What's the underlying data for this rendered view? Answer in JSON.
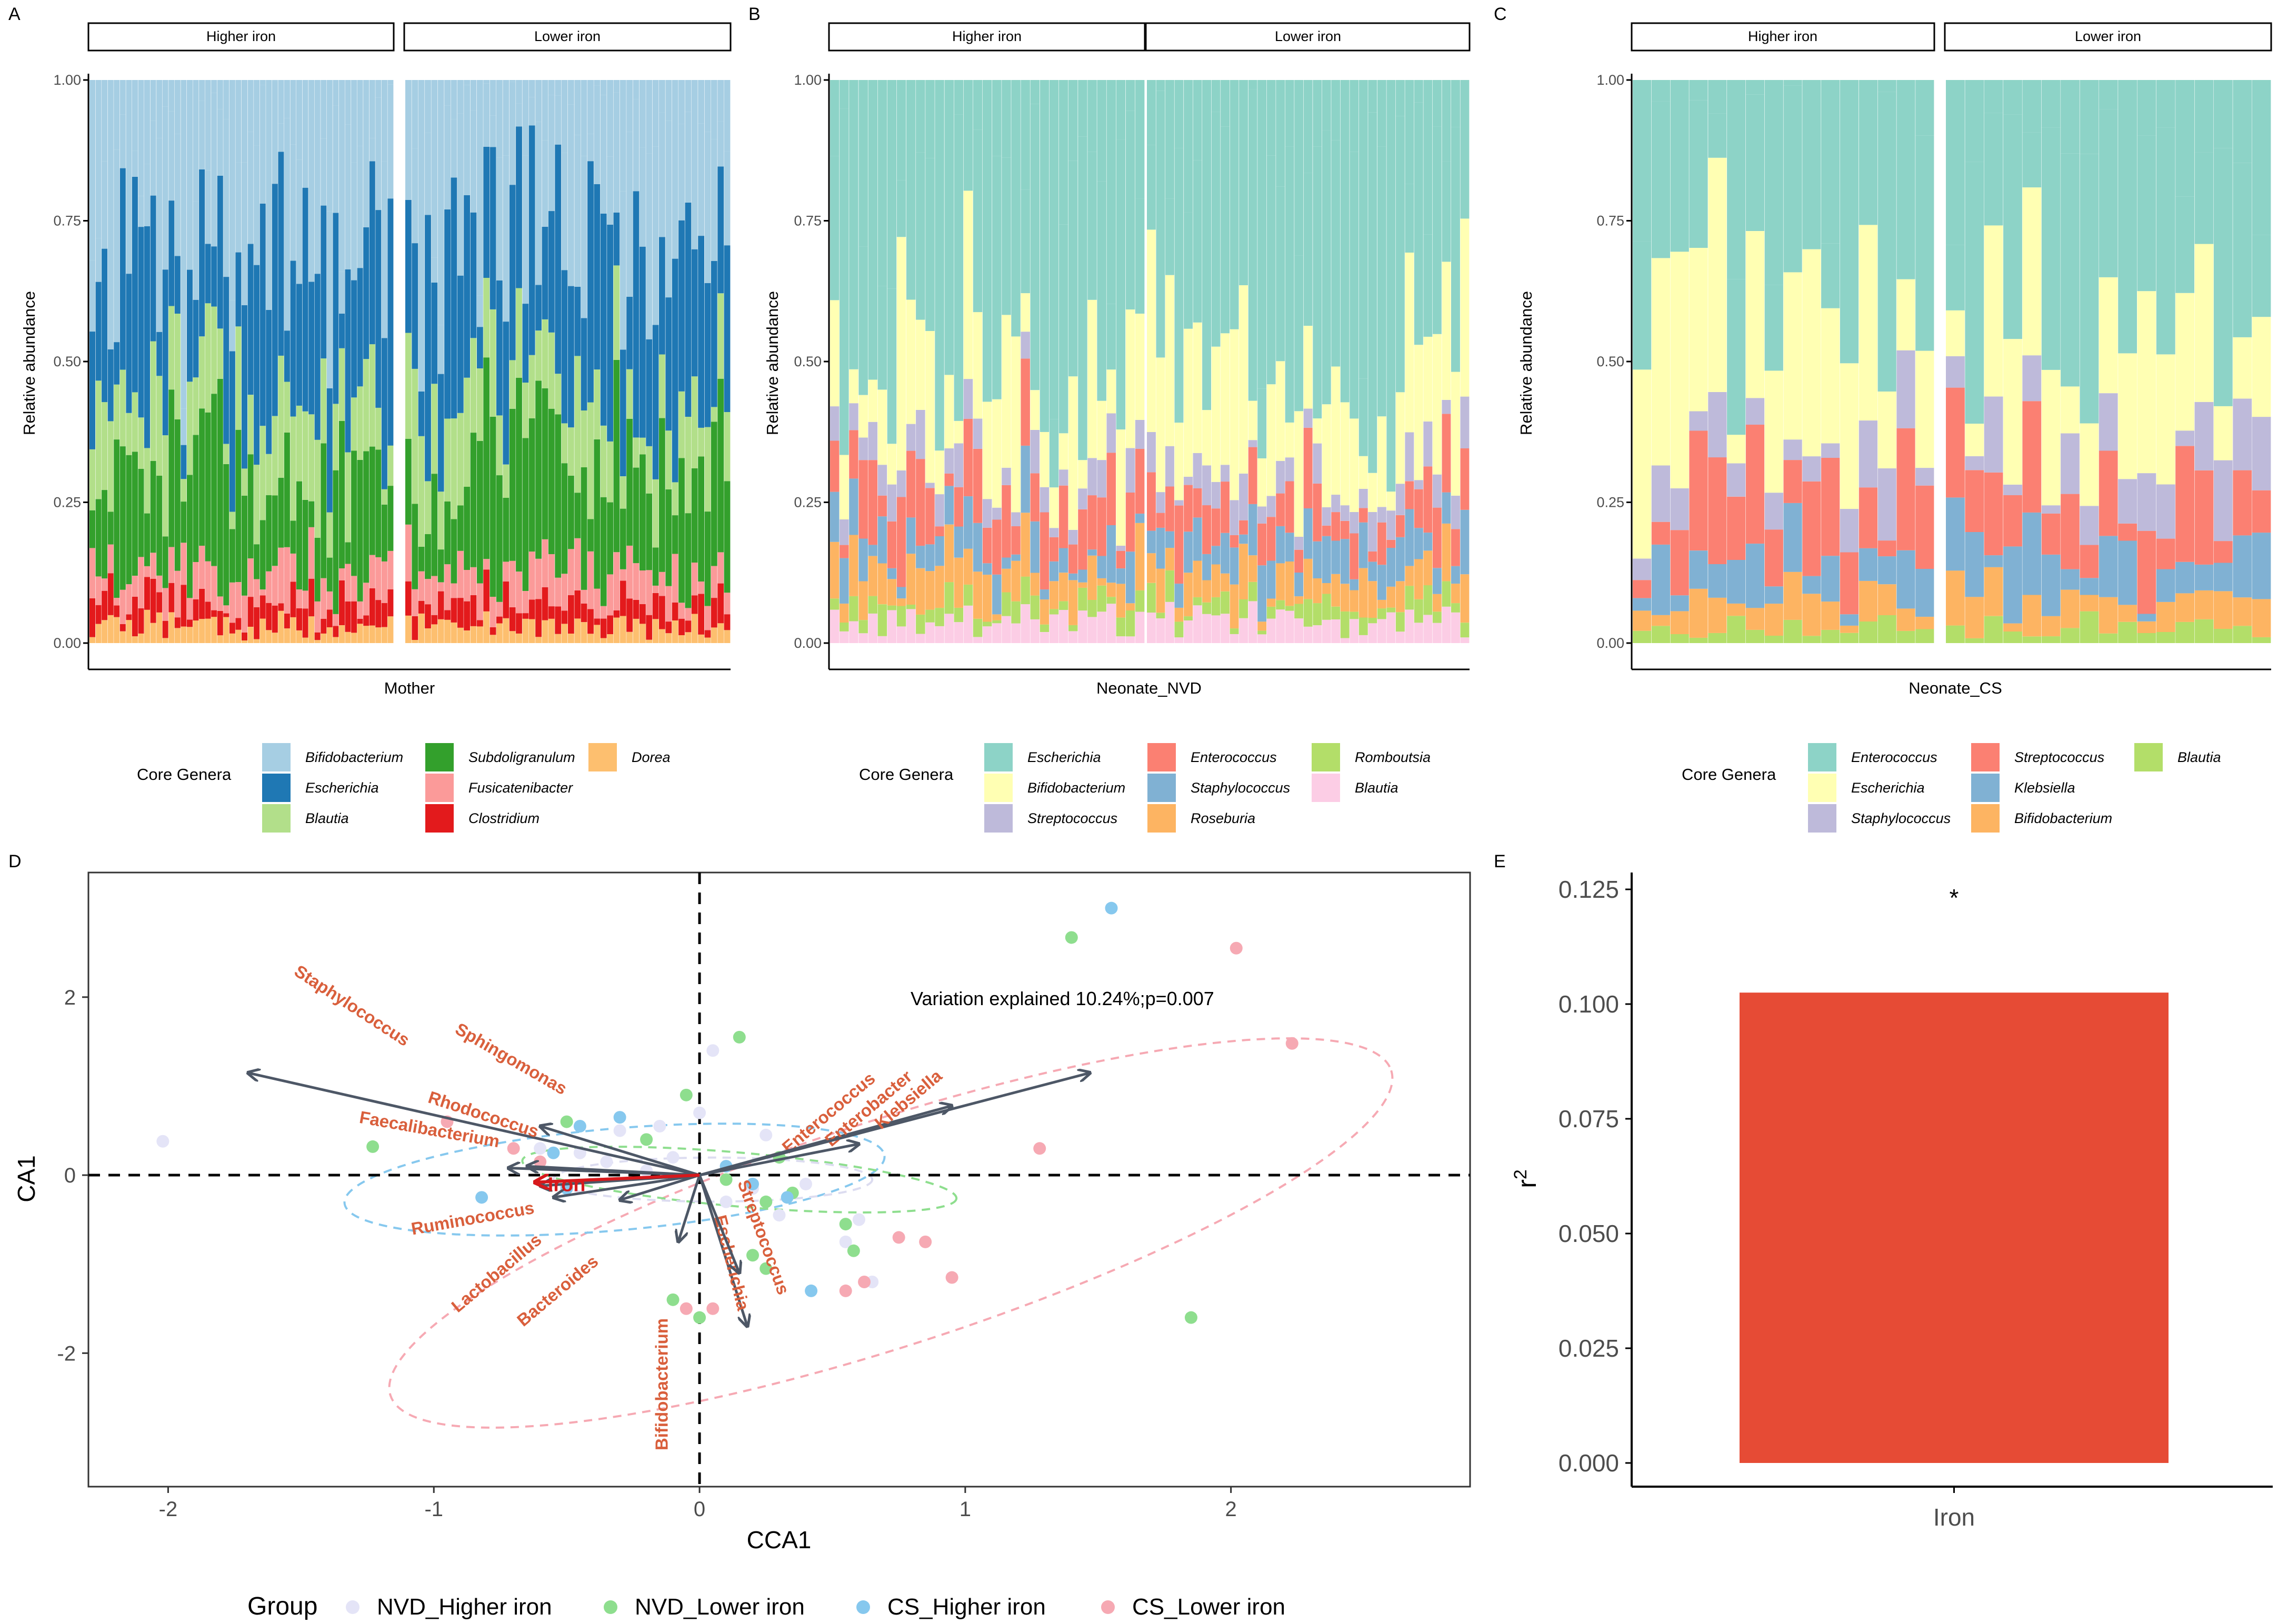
{
  "panel_letters": [
    "A",
    "B",
    "C",
    "D",
    "E"
  ],
  "strip_labels": {
    "higher": "Higher iron",
    "lower": "Lower iron"
  },
  "chart_data": [
    {
      "id": "A",
      "type": "bar",
      "stacked": true,
      "xlabel": "Mother",
      "ylabel": "Relative abundance",
      "ylim": [
        0,
        1
      ],
      "yticks": [
        "0.00",
        "0.25",
        "0.50",
        "0.75",
        "1.00"
      ],
      "facets": [
        "Higher iron",
        "Lower iron"
      ],
      "bars_per_facet": [
        50,
        50
      ],
      "legend_title": "Core Genera",
      "genera": [
        "Bifidobacterium",
        "Escherichia",
        "Blautia",
        "Subdoligranulum",
        "Fusicatenibacter",
        "Clostridium",
        "Dorea"
      ],
      "colors": [
        "#a6cee3",
        "#1f78b4",
        "#b2df8a",
        "#33a02c",
        "#fb9a99",
        "#e31a1c",
        "#fdbf6f"
      ],
      "typical_composition": [
        0.2,
        0.3,
        0.13,
        0.2,
        0.06,
        0.04,
        0.03
      ]
    },
    {
      "id": "B",
      "type": "bar",
      "stacked": true,
      "xlabel": "Neonate_NVD",
      "ylabel": "Relative abundance",
      "ylim": [
        0,
        1
      ],
      "yticks": [
        "0.00",
        "0.25",
        "0.50",
        "0.75",
        "1.00"
      ],
      "facets": [
        "Higher iron",
        "Lower iron"
      ],
      "bars_per_facet": [
        33,
        35
      ],
      "legend_title": "Core Genera",
      "genera": [
        "Escherichia",
        "Bifidobacterium",
        "Streptococcus",
        "Enterococcus",
        "Staphylococcus",
        "Roseburia",
        "Romboutsia",
        "Blautia"
      ],
      "colors": [
        "#8dd3c7",
        "#ffffb3",
        "#bebada",
        "#fb8072",
        "#80b1d3",
        "#fdb462",
        "#b3de69",
        "#fccde5"
      ],
      "typical_composition": [
        0.4,
        0.22,
        0.05,
        0.08,
        0.06,
        0.06,
        0.03,
        0.04
      ]
    },
    {
      "id": "C",
      "type": "bar",
      "stacked": true,
      "xlabel": "Neonate_CS",
      "ylabel": "Relative abundance",
      "ylim": [
        0,
        1
      ],
      "yticks": [
        "0.00",
        "0.25",
        "0.50",
        "0.75",
        "1.00"
      ],
      "facets": [
        "Higher iron",
        "Lower iron"
      ],
      "bars_per_facet": [
        16,
        17
      ],
      "legend_title": "Core Genera",
      "genera": [
        "Enterococcus",
        "Escherichia",
        "Staphylococcus",
        "Streptococcus",
        "Klebsiella",
        "Bifidobacterium",
        "Blautia"
      ],
      "colors": [
        "#8dd3c7",
        "#ffffb3",
        "#bebada",
        "#fb8072",
        "#80b1d3",
        "#fdb462",
        "#b3de69"
      ],
      "typical_composition": [
        0.35,
        0.25,
        0.08,
        0.12,
        0.08,
        0.05,
        0.03
      ]
    },
    {
      "id": "D",
      "type": "scatter",
      "xlabel": "CCA1",
      "ylabel": "CA1",
      "xlim": [
        -2.3,
        2.9
      ],
      "ylim": [
        -3.5,
        3.4
      ],
      "xticks": [
        -2,
        -1,
        0,
        1,
        2
      ],
      "yticks": [
        -2,
        0,
        2
      ],
      "annotation": "Variation explained 10.24%;p=0.007",
      "legend_title": "Group",
      "groups": [
        {
          "name": "NVD_Higher iron",
          "color": "#e4e4f7",
          "points": [
            [
              -2.02,
              0.38
            ],
            [
              -0.6,
              0.3
            ],
            [
              -0.45,
              0.25
            ],
            [
              -0.35,
              0.15
            ],
            [
              -0.2,
              0.05
            ],
            [
              -0.1,
              0.2
            ],
            [
              0.05,
              1.4
            ],
            [
              0.1,
              -0.3
            ],
            [
              0.2,
              -0.15
            ],
            [
              0.3,
              -0.45
            ],
            [
              0.4,
              -0.1
            ],
            [
              0.55,
              -0.75
            ],
            [
              0.6,
              -0.5
            ],
            [
              0.65,
              -1.2
            ],
            [
              -0.3,
              0.5
            ],
            [
              0.0,
              0.7
            ],
            [
              -0.15,
              0.55
            ],
            [
              0.25,
              0.45
            ]
          ]
        },
        {
          "name": "NVD_Lower iron",
          "color": "#8ede8e",
          "points": [
            [
              -1.23,
              0.32
            ],
            [
              -0.5,
              0.6
            ],
            [
              -0.2,
              0.4
            ],
            [
              -0.05,
              0.9
            ],
            [
              0.15,
              1.55
            ],
            [
              0.1,
              -0.05
            ],
            [
              0.25,
              -0.3
            ],
            [
              0.35,
              -0.2
            ],
            [
              0.55,
              -0.55
            ],
            [
              0.58,
              -0.85
            ],
            [
              0.25,
              -1.05
            ],
            [
              -0.1,
              -1.4
            ],
            [
              0.0,
              -1.6
            ],
            [
              0.2,
              -0.9
            ],
            [
              0.3,
              0.2
            ],
            [
              1.4,
              2.67
            ],
            [
              1.85,
              -1.6
            ]
          ]
        },
        {
          "name": "CS_Higher iron",
          "color": "#86c8ee",
          "points": [
            [
              -0.82,
              -0.25
            ],
            [
              -0.5,
              -0.15
            ],
            [
              -0.45,
              0.55
            ],
            [
              -0.3,
              0.65
            ],
            [
              -0.55,
              0.25
            ],
            [
              0.1,
              0.1
            ],
            [
              0.2,
              -0.1
            ],
            [
              0.33,
              -0.25
            ],
            [
              0.42,
              -1.3
            ],
            [
              1.55,
              3.0
            ]
          ]
        },
        {
          "name": "CS_Lower iron",
          "color": "#f6a9b3",
          "points": [
            [
              -0.7,
              0.3
            ],
            [
              -0.6,
              0.15
            ],
            [
              -0.95,
              0.6
            ],
            [
              0.05,
              -1.5
            ],
            [
              -0.05,
              -1.5
            ],
            [
              0.55,
              -1.3
            ],
            [
              0.62,
              -1.2
            ],
            [
              0.75,
              -0.7
            ],
            [
              0.85,
              -0.75
            ],
            [
              0.95,
              -1.15
            ],
            [
              1.28,
              0.3
            ],
            [
              2.02,
              2.55
            ],
            [
              2.23,
              1.48
            ]
          ]
        }
      ],
      "ellipses": [
        {
          "group": "CS_Lower iron",
          "cx": 0.72,
          "cy": -0.65,
          "rx": 1.98,
          "ry": 2.3,
          "angle": 18,
          "color": "#f6a9b3"
        },
        {
          "group": "CS_Higher iron",
          "cx": -0.32,
          "cy": -0.05,
          "rx": 1.02,
          "ry": 1.04,
          "angle": 5,
          "color": "#86c8ee"
        },
        {
          "group": "NVD_Lower iron",
          "cx": 0.15,
          "cy": -0.05,
          "rx": 0.82,
          "ry": 0.55,
          "angle": -5,
          "color": "#8ede8e"
        },
        {
          "group": "NVD_Higher iron",
          "cx": 0.05,
          "cy": -0.05,
          "rx": 0.6,
          "ry": 0.45,
          "angle": 0,
          "color": "#dcdcf0"
        }
      ],
      "arrows": [
        {
          "label": "Staphylococcus",
          "x": -1.7,
          "y": 1.15,
          "lx": -1.32,
          "ly": 1.85,
          "rot": 33
        },
        {
          "label": "Sphingomonas",
          "x": -0.6,
          "y": 0.55,
          "lx": -0.72,
          "ly": 1.25,
          "rot": 30
        },
        {
          "label": "Rhodococcus",
          "x": -0.65,
          "y": 0.1,
          "lx": -0.82,
          "ly": 0.62,
          "rot": 18
        },
        {
          "label": "Faecalibacterium",
          "x": -0.72,
          "y": 0.08,
          "lx": -1.02,
          "ly": 0.45,
          "rot": 10
        },
        {
          "label": "Ruminococcus",
          "x": -0.6,
          "y": -0.12,
          "lx": -0.85,
          "ly": -0.55,
          "rot": -10
        },
        {
          "label": "Lactobacillus",
          "x": -0.55,
          "y": -0.25,
          "lx": -0.75,
          "ly": -1.15,
          "rot": -40
        },
        {
          "label": "Bacteroides",
          "x": -0.3,
          "y": -0.28,
          "lx": -0.52,
          "ly": -1.35,
          "rot": -40
        },
        {
          "label": "Bifidobacterium",
          "x": -0.08,
          "y": -0.75,
          "lx": -0.12,
          "ly": -2.35,
          "rot": -90
        },
        {
          "label": "Escherichia",
          "x": 0.18,
          "y": -1.7,
          "lx": 0.1,
          "ly": -1.0,
          "rot": 76
        },
        {
          "label": "Streptococcus",
          "x": 0.15,
          "y": -1.1,
          "lx": 0.22,
          "ly": -0.72,
          "rot": 70
        },
        {
          "label": "Enterococcus",
          "x": 0.6,
          "y": 0.35,
          "lx": 0.5,
          "ly": 0.65,
          "rot": -40
        },
        {
          "label": "Enterobacter",
          "x": 0.95,
          "y": 0.78,
          "lx": 0.65,
          "ly": 0.7,
          "rot": -40
        },
        {
          "label": "Klebsiella",
          "x": 1.47,
          "y": 1.15,
          "lx": 0.8,
          "ly": 0.8,
          "rot": -40
        }
      ],
      "iron_vector": {
        "label": "Iron",
        "x": -0.62,
        "y": -0.08,
        "lx": -0.5,
        "ly": -0.18,
        "color": "#d7191c"
      }
    },
    {
      "id": "E",
      "type": "bar",
      "categories": [
        "Iron"
      ],
      "values": [
        0.1025
      ],
      "ylabel": "r",
      "ylabel_sup": "2",
      "ylim": [
        0,
        0.13
      ],
      "yticks": [
        "0.000",
        "0.025",
        "0.050",
        "0.075",
        "0.100",
        "0.125"
      ],
      "significance": "*",
      "color": "#e64b35"
    }
  ]
}
